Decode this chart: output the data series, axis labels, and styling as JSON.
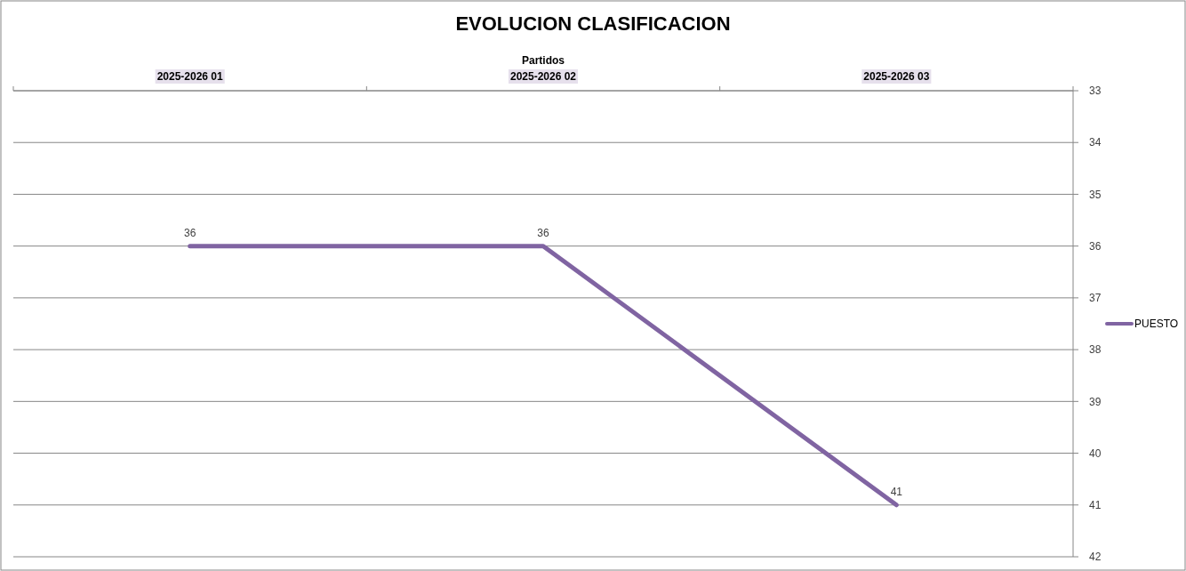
{
  "chart_data": {
    "type": "line",
    "title": "EVOLUCION CLASIFICACION",
    "xlabel": "Partidos",
    "categories": [
      "2025-2026 01",
      "2025-2026 02",
      "2025-2026 03"
    ],
    "series": [
      {
        "name": "PUESTO",
        "color": "#8064a2",
        "values": [
          36,
          36,
          41
        ]
      }
    ],
    "ylim": [
      42,
      33
    ],
    "yticks": [
      33,
      34,
      35,
      36,
      37,
      38,
      39,
      40,
      41,
      42
    ],
    "grid": "y",
    "legend": "right",
    "data_labels": true
  }
}
